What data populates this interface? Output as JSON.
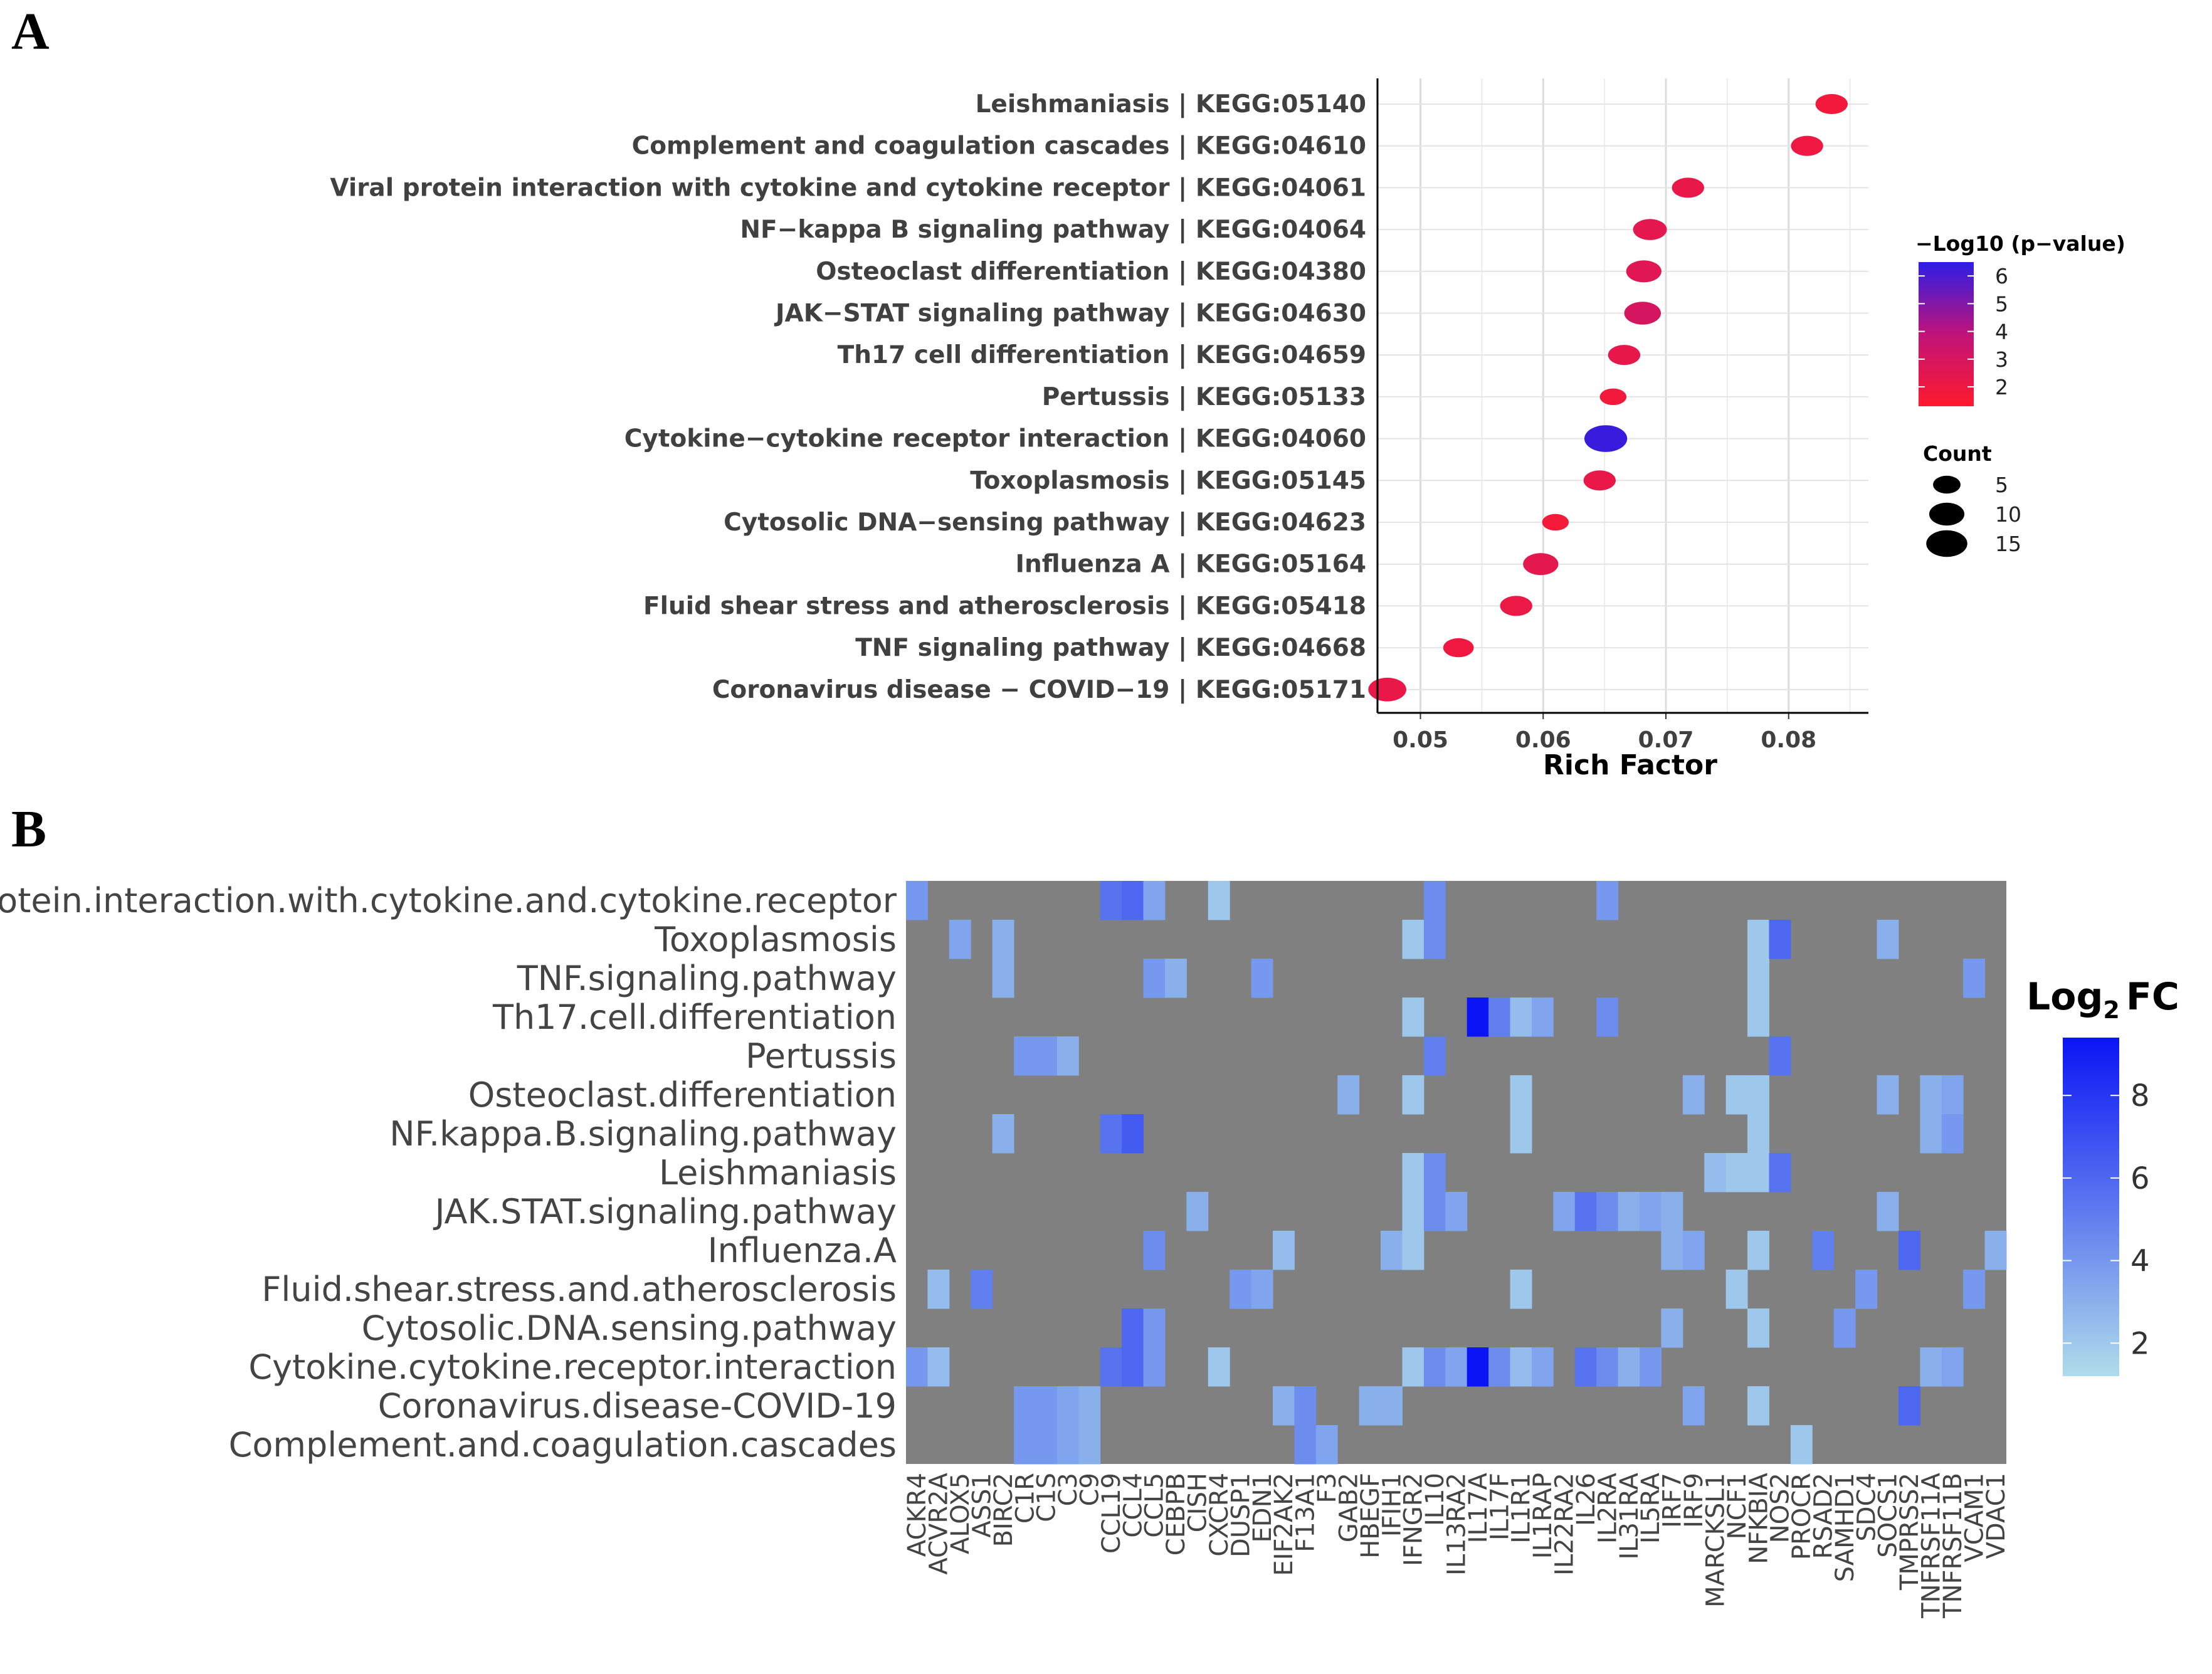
{
  "chart_data": [
    {
      "panel": "A",
      "type": "scatter",
      "xlabel": "Rich Factor",
      "xlim": [
        0.0465,
        0.0865
      ],
      "xticks": [
        "0.05",
        "0.06",
        "0.07",
        "0.08"
      ],
      "xtick_values": [
        0.05,
        0.06,
        0.07,
        0.08
      ],
      "color_legend": {
        "title": "−Log10 (p−value)",
        "ticks": [
          "2",
          "3",
          "4",
          "5",
          "6"
        ],
        "tick_values": [
          2,
          3,
          4,
          5,
          6
        ],
        "range": [
          1.3,
          6.5
        ],
        "low_color": "#ff1a2e",
        "mid_color": "#c0137a",
        "high_color": "#2d1de6"
      },
      "size_legend": {
        "title": "Count",
        "ticks": [
          "5",
          "10",
          "15"
        ],
        "tick_values": [
          5,
          10,
          15
        ]
      },
      "points": [
        {
          "term": "Leishmaniasis | KEGG:05140",
          "rich_factor": 0.0835,
          "neg_log10_p": 1.8,
          "count": 7
        },
        {
          "term": "Complement and coagulation cascades | KEGG:04610",
          "rich_factor": 0.0815,
          "neg_log10_p": 2.0,
          "count": 7
        },
        {
          "term": "Viral protein interaction with cytokine and cytokine receptor | KEGG:04061",
          "rich_factor": 0.0718,
          "neg_log10_p": 2.2,
          "count": 7
        },
        {
          "term": "NF−kappa B signaling pathway | KEGG:04064",
          "rich_factor": 0.0687,
          "neg_log10_p": 2.4,
          "count": 8
        },
        {
          "term": "Osteoclast differentiation | KEGG:04380",
          "rich_factor": 0.0682,
          "neg_log10_p": 2.6,
          "count": 9
        },
        {
          "term": "JAK−STAT signaling pathway | KEGG:04630",
          "rich_factor": 0.0681,
          "neg_log10_p": 3.0,
          "count": 10
        },
        {
          "term": "Th17 cell differentiation | KEGG:04659",
          "rich_factor": 0.0666,
          "neg_log10_p": 2.3,
          "count": 7
        },
        {
          "term": "Pertussis | KEGG:05133",
          "rich_factor": 0.0657,
          "neg_log10_p": 1.8,
          "count": 4
        },
        {
          "term": "Cytokine−cytokine receptor interaction | KEGG:04060",
          "rich_factor": 0.0651,
          "neg_log10_p": 6.3,
          "count": 15
        },
        {
          "term": "Toxoplasmosis | KEGG:05145",
          "rich_factor": 0.0646,
          "neg_log10_p": 2.2,
          "count": 7
        },
        {
          "term": "Cytosolic DNA−sensing pathway | KEGG:04623",
          "rich_factor": 0.061,
          "neg_log10_p": 1.7,
          "count": 4
        },
        {
          "term": "Influenza A | KEGG:05164",
          "rich_factor": 0.0598,
          "neg_log10_p": 2.4,
          "count": 9
        },
        {
          "term": "Fluid shear stress and atherosclerosis | KEGG:05418",
          "rich_factor": 0.0578,
          "neg_log10_p": 2.1,
          "count": 7
        },
        {
          "term": "TNF signaling pathway | KEGG:04668",
          "rich_factor": 0.0531,
          "neg_log10_p": 1.9,
          "count": 6
        },
        {
          "term": "Coronavirus disease − COVID−19 | KEGG:05171",
          "rich_factor": 0.0473,
          "neg_log10_p": 2.2,
          "count": 11
        }
      ]
    },
    {
      "panel": "B",
      "type": "heatmap",
      "legend_title_main": "Log",
      "legend_title_sub": "2",
      "legend_title_suffix": "FC",
      "legend_ticks": [
        "2",
        "4",
        "6",
        "8"
      ],
      "legend_tick_values": [
        2,
        4,
        6,
        8
      ],
      "value_range": [
        1.2,
        9.4
      ],
      "na_color": "#808080",
      "low_color": "#aedcea",
      "high_color": "#0a14f5",
      "rows": [
        "Viral.protein.interaction.with.cytokine.and.cytokine.receptor",
        "Toxoplasmosis",
        "TNF.signaling.pathway",
        "Th17.cell.differentiation",
        "Pertussis",
        "Osteoclast.differentiation",
        "NF.kappa.B.signaling.pathway",
        "Leishmaniasis",
        "JAK.STAT.signaling.pathway",
        "Influenza.A",
        "Fluid.shear.stress.and.atherosclerosis",
        "Cytosolic.DNA.sensing.pathway",
        "Cytokine.cytokine.receptor.interaction",
        "Coronavirus.disease-COVID-19",
        "Complement.and.coagulation.cascades"
      ],
      "columns": [
        "ACKR4",
        "ACVR2A",
        "ALOX5",
        "ASS1",
        "BIRC2",
        "C1R",
        "C1S",
        "C3",
        "C9",
        "CCL19",
        "CCL4",
        "CCL5",
        "CEBPB",
        "CISH",
        "CXCR4",
        "DUSP1",
        "EDN1",
        "EIF2AK2",
        "F13A1",
        "F3",
        "GAB2",
        "HBEGF",
        "IFIH1",
        "IFNGR2",
        "IL10",
        "IL13RA2",
        "IL17A",
        "IL17F",
        "IL1R1",
        "IL1RAP",
        "IL22RA2",
        "IL26",
        "IL2RA",
        "IL31RA",
        "IL5RA",
        "IRF7",
        "IRF9",
        "MARCKSL1",
        "NCF1",
        "NFKBIA",
        "NOS2",
        "PROCR",
        "RSAD2",
        "SAMHD1",
        "SDC4",
        "SOCS1",
        "TMPRSS2",
        "TNFRSF11A",
        "TNFRSF11B",
        "VCAM1",
        "VDAC1"
      ],
      "cells": [
        [
          0,
          0,
          4.0
        ],
        [
          0,
          9,
          5.5
        ],
        [
          0,
          10,
          6.0
        ],
        [
          0,
          11,
          3.5
        ],
        [
          0,
          14,
          2.0
        ],
        [
          0,
          24,
          4.5
        ],
        [
          0,
          32,
          4.0
        ],
        [
          1,
          2,
          3.5
        ],
        [
          1,
          4,
          3.0
        ],
        [
          1,
          23,
          2.0
        ],
        [
          1,
          24,
          4.5
        ],
        [
          1,
          39,
          2.0
        ],
        [
          1,
          40,
          6.0
        ],
        [
          1,
          45,
          3.0
        ],
        [
          2,
          4,
          3.0
        ],
        [
          2,
          11,
          4.0
        ],
        [
          2,
          12,
          3.0
        ],
        [
          2,
          16,
          4.0
        ],
        [
          2,
          39,
          2.0
        ],
        [
          2,
          49,
          4.0
        ],
        [
          3,
          23,
          2.0
        ],
        [
          3,
          26,
          9.4
        ],
        [
          3,
          27,
          5.0
        ],
        [
          3,
          28,
          2.5
        ],
        [
          3,
          29,
          3.5
        ],
        [
          3,
          32,
          4.5
        ],
        [
          3,
          39,
          2.0
        ],
        [
          4,
          5,
          4.0
        ],
        [
          4,
          6,
          4.0
        ],
        [
          4,
          7,
          3.0
        ],
        [
          4,
          24,
          5.0
        ],
        [
          4,
          40,
          5.5
        ],
        [
          5,
          20,
          3.0
        ],
        [
          5,
          23,
          2.0
        ],
        [
          5,
          28,
          2.0
        ],
        [
          5,
          36,
          3.0
        ],
        [
          5,
          38,
          2.0
        ],
        [
          5,
          39,
          2.0
        ],
        [
          5,
          45,
          3.0
        ],
        [
          5,
          47,
          3.0
        ],
        [
          5,
          48,
          3.5
        ],
        [
          6,
          4,
          3.0
        ],
        [
          6,
          9,
          5.5
        ],
        [
          6,
          10,
          6.5
        ],
        [
          6,
          28,
          2.0
        ],
        [
          6,
          39,
          2.0
        ],
        [
          6,
          47,
          3.0
        ],
        [
          6,
          48,
          4.0
        ],
        [
          7,
          23,
          2.0
        ],
        [
          7,
          24,
          4.5
        ],
        [
          7,
          37,
          2.5
        ],
        [
          7,
          38,
          2.0
        ],
        [
          7,
          39,
          2.0
        ],
        [
          7,
          40,
          5.5
        ],
        [
          8,
          13,
          3.0
        ],
        [
          8,
          23,
          2.0
        ],
        [
          8,
          24,
          4.5
        ],
        [
          8,
          25,
          3.5
        ],
        [
          8,
          30,
          3.5
        ],
        [
          8,
          31,
          5.5
        ],
        [
          8,
          32,
          4.5
        ],
        [
          8,
          33,
          3.0
        ],
        [
          8,
          34,
          3.5
        ],
        [
          8,
          35,
          3.0
        ],
        [
          8,
          45,
          3.0
        ],
        [
          9,
          11,
          4.5
        ],
        [
          9,
          17,
          2.5
        ],
        [
          9,
          22,
          3.0
        ],
        [
          9,
          23,
          2.0
        ],
        [
          9,
          35,
          3.0
        ],
        [
          9,
          36,
          3.5
        ],
        [
          9,
          39,
          2.0
        ],
        [
          9,
          42,
          5.0
        ],
        [
          9,
          46,
          6.0
        ],
        [
          9,
          50,
          3.0
        ],
        [
          10,
          1,
          2.5
        ],
        [
          10,
          3,
          5.0
        ],
        [
          10,
          15,
          4.0
        ],
        [
          10,
          16,
          3.5
        ],
        [
          10,
          28,
          2.0
        ],
        [
          10,
          38,
          2.0
        ],
        [
          10,
          44,
          4.0
        ],
        [
          10,
          49,
          4.0
        ],
        [
          11,
          10,
          6.0
        ],
        [
          11,
          11,
          4.0
        ],
        [
          11,
          35,
          3.0
        ],
        [
          11,
          39,
          2.0
        ],
        [
          11,
          43,
          4.0
        ],
        [
          12,
          0,
          4.0
        ],
        [
          12,
          1,
          2.5
        ],
        [
          12,
          9,
          5.5
        ],
        [
          12,
          10,
          6.0
        ],
        [
          12,
          11,
          4.0
        ],
        [
          12,
          14,
          2.0
        ],
        [
          12,
          23,
          2.0
        ],
        [
          12,
          24,
          4.5
        ],
        [
          12,
          25,
          3.5
        ],
        [
          12,
          26,
          9.4
        ],
        [
          12,
          27,
          4.5
        ],
        [
          12,
          28,
          2.5
        ],
        [
          12,
          29,
          3.5
        ],
        [
          12,
          31,
          5.5
        ],
        [
          12,
          32,
          4.5
        ],
        [
          12,
          33,
          3.0
        ],
        [
          12,
          34,
          4.0
        ],
        [
          12,
          47,
          3.0
        ],
        [
          12,
          48,
          3.5
        ],
        [
          13,
          5,
          4.0
        ],
        [
          13,
          6,
          4.0
        ],
        [
          13,
          7,
          3.5
        ],
        [
          13,
          8,
          3.0
        ],
        [
          13,
          17,
          3.0
        ],
        [
          13,
          18,
          4.5
        ],
        [
          13,
          21,
          3.0
        ],
        [
          13,
          22,
          3.0
        ],
        [
          13,
          36,
          3.5
        ],
        [
          13,
          39,
          2.0
        ],
        [
          13,
          46,
          6.0
        ],
        [
          14,
          5,
          4.0
        ],
        [
          14,
          6,
          4.0
        ],
        [
          14,
          7,
          3.5
        ],
        [
          14,
          8,
          3.0
        ],
        [
          14,
          18,
          4.5
        ],
        [
          14,
          19,
          3.5
        ],
        [
          14,
          41,
          2.0
        ]
      ]
    }
  ],
  "figure": {
    "label_a": "A",
    "label_b": "B"
  }
}
